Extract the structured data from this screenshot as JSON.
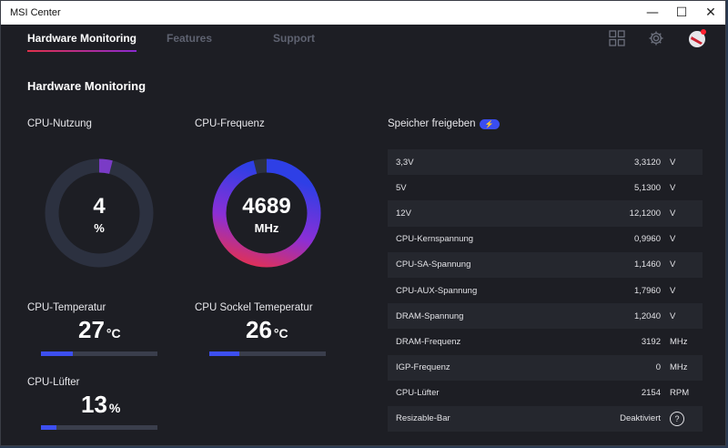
{
  "window": {
    "title": "MSI Center",
    "min": "—",
    "max": "☐",
    "close": "✕"
  },
  "nav": {
    "tabs": [
      {
        "label": "Hardware Monitoring"
      },
      {
        "label": "Features"
      },
      {
        "label": "Support"
      }
    ]
  },
  "section_title": "Hardware Monitoring",
  "cpu_usage": {
    "label": "CPU-Nutzung",
    "value": "4",
    "unit": "%",
    "fraction": 0.04
  },
  "cpu_freq": {
    "label": "CPU-Frequenz",
    "value": "4689",
    "unit": "MHz",
    "fraction": 0.96
  },
  "cpu_temp": {
    "label": "CPU-Temperatur",
    "value": "27",
    "unit": "°C",
    "fraction": 0.27
  },
  "socket_temp": {
    "label": "CPU Sockel Temeperatur",
    "value": "26",
    "unit": "°C",
    "fraction": 0.26
  },
  "cpu_fan": {
    "label": "CPU-Lüfter",
    "value": "13",
    "unit": "%",
    "fraction": 0.13
  },
  "memory": {
    "label": "Speicher freigeben",
    "button_icon": "⚡"
  },
  "rows": [
    {
      "name": "3,3V",
      "value": "3,3120",
      "unit": "V"
    },
    {
      "name": "5V",
      "value": "5,1300",
      "unit": "V"
    },
    {
      "name": "12V",
      "value": "12,1200",
      "unit": "V"
    },
    {
      "name": "CPU-Kernspannung",
      "value": "0,9960",
      "unit": "V"
    },
    {
      "name": "CPU-SA-Spannung",
      "value": "1,1460",
      "unit": "V"
    },
    {
      "name": "CPU-AUX-Spannung",
      "value": "1,7960",
      "unit": "V"
    },
    {
      "name": "DRAM-Spannung",
      "value": "1,2040",
      "unit": "V"
    },
    {
      "name": "DRAM-Frequenz",
      "value": "3192",
      "unit": "MHz"
    },
    {
      "name": "IGP-Frequenz",
      "value": "0",
      "unit": "MHz"
    },
    {
      "name": "CPU-Lüfter",
      "value": "2154",
      "unit": "RPM"
    },
    {
      "name": "Resizable-Bar",
      "value": "Deaktiviert",
      "unit": "?"
    }
  ],
  "colors": {
    "accent_blue": "#3d4ff0",
    "accent_red": "#e0304a",
    "accent_purple": "#8a2ad0",
    "bg": "#1d1e24"
  }
}
